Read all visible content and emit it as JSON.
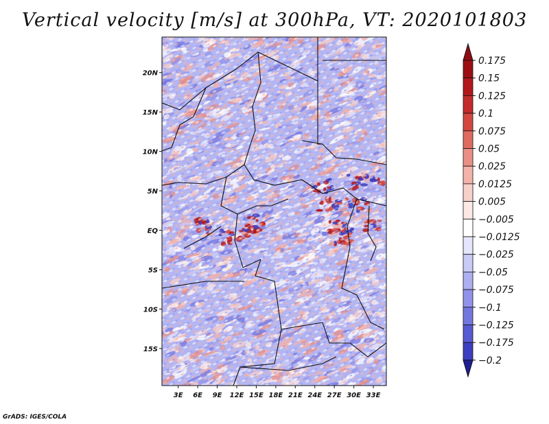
{
  "title": "Vertical velocity [m/s] at 300hPa, VT: 2020101803",
  "credit": "GrADS: IGES/COLA",
  "map": {
    "lat_labels": [
      {
        "label": "20N",
        "lat": 20
      },
      {
        "label": "15N",
        "lat": 15
      },
      {
        "label": "10N",
        "lat": 10
      },
      {
        "label": "5N",
        "lat": 5
      },
      {
        "label": "EQ",
        "lat": 0
      },
      {
        "label": "5S",
        "lat": -5
      },
      {
        "label": "10S",
        "lat": -10
      },
      {
        "label": "15S",
        "lat": -15
      }
    ],
    "lon_labels": [
      {
        "label": "3E",
        "lon": 3
      },
      {
        "label": "6E",
        "lon": 6
      },
      {
        "label": "9E",
        "lon": 9
      },
      {
        "label": "12E",
        "lon": 12
      },
      {
        "label": "15E",
        "lon": 15
      },
      {
        "label": "18E",
        "lon": 18
      },
      {
        "label": "21E",
        "lon": 21
      },
      {
        "label": "24E",
        "lon": 24
      },
      {
        "label": "27E",
        "lon": 27
      },
      {
        "label": "30E",
        "lon": 30
      },
      {
        "label": "33E",
        "lon": 33
      }
    ],
    "lon_range": [
      0.5,
      35
    ],
    "lat_range": [
      -19.7,
      24.5
    ]
  },
  "colorbar": {
    "levels": [
      {
        "label": "0.175",
        "color": "#9b0f14"
      },
      {
        "label": "0.15",
        "color": "#b1181c"
      },
      {
        "label": "0.125",
        "color": "#c32a2a"
      },
      {
        "label": "0.1",
        "color": "#d3473f"
      },
      {
        "label": "0.075",
        "color": "#df6a5e"
      },
      {
        "label": "0.05",
        "color": "#ea8f86"
      },
      {
        "label": "0.025",
        "color": "#f3b2aa"
      },
      {
        "label": "0.0125",
        "color": "#f8d0ca"
      },
      {
        "label": "0.005",
        "color": "#fce9e6"
      },
      {
        "label": "−0.005",
        "color": "#ffffff"
      },
      {
        "label": "−0.0125",
        "color": "#e5e6fb"
      },
      {
        "label": "−0.025",
        "color": "#c9cbf6"
      },
      {
        "label": "−0.05",
        "color": "#adaff0"
      },
      {
        "label": "−0.075",
        "color": "#9193ea"
      },
      {
        "label": "−0.1",
        "color": "#7476e0"
      },
      {
        "label": "−0.125",
        "color": "#585ad2"
      },
      {
        "label": "−0.175",
        "color": "#3d3ec0"
      },
      {
        "label": "−0.2",
        "color": "#2a2aa8"
      }
    ],
    "top_color": "#8f0c12",
    "bottom_color": "#1e1e96"
  }
}
